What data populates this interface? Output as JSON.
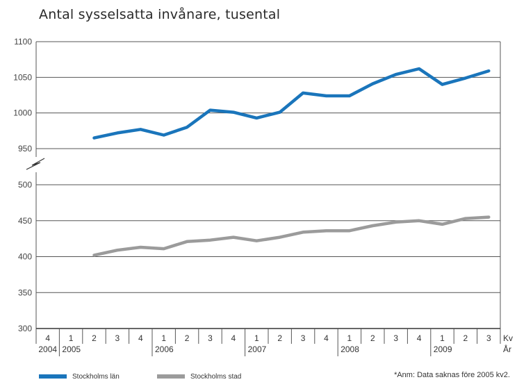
{
  "title": "Antal sysselsatta invånare, tusental",
  "chart_data": {
    "type": "line",
    "title": "Antal sysselsatta invånare, tusental",
    "ylabel": "",
    "xlabel": "",
    "ylim": [
      300,
      1100
    ],
    "axis_break": {
      "between": [
        500,
        950
      ]
    },
    "y_ticks": [
      "1100",
      "1050",
      "1000",
      "950",
      "500",
      "450",
      "400",
      "350",
      "300"
    ],
    "x_axis_labels": {
      "quarter": "Kv",
      "year": "År"
    },
    "quarters": [
      "4",
      "1",
      "2",
      "3",
      "4",
      "1",
      "2",
      "3",
      "4",
      "1",
      "2",
      "3",
      "4",
      "1",
      "2",
      "3",
      "4",
      "1",
      "2",
      "3"
    ],
    "years": [
      {
        "label": "2004",
        "start": 0
      },
      {
        "label": "2005",
        "start": 1
      },
      {
        "label": "2006",
        "start": 5
      },
      {
        "label": "2007",
        "start": 9
      },
      {
        "label": "2008",
        "start": 13
      },
      {
        "label": "2009",
        "start": 17
      }
    ],
    "series": [
      {
        "name": "Stockholms län",
        "color": "#1a75bb",
        "start_index": 2,
        "values": [
          965,
          972,
          977,
          969,
          980,
          1004,
          1001,
          993,
          1001,
          1028,
          1024,
          1024,
          1041,
          1054,
          1062,
          1040,
          1049,
          1059
        ]
      },
      {
        "name": "Stockholms stad",
        "color": "#9b9b9b",
        "start_index": 2,
        "values": [
          402,
          409,
          413,
          411,
          421,
          423,
          427,
          422,
          427,
          434,
          436,
          436,
          443,
          448,
          450,
          445,
          453,
          455
        ]
      }
    ],
    "grid": true,
    "legend_position": "bottom-left"
  },
  "legend": {
    "items": [
      {
        "label": "Stockholms län",
        "color": "#1a75bb"
      },
      {
        "label": "Stockholms stad",
        "color": "#9b9b9b"
      }
    ]
  },
  "note": "*Anm: Data saknas före 2005 kv2."
}
